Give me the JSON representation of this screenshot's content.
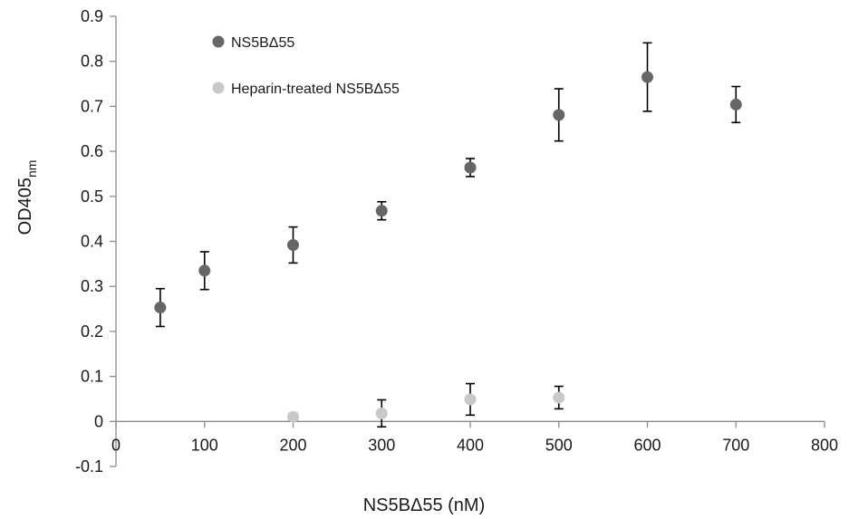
{
  "chart_data": {
    "type": "scatter",
    "xlabel": "NS5BΔ55 (nM)",
    "ylabel": {
      "main": "OD405",
      "sub": "nm"
    },
    "xlim": [
      0,
      800
    ],
    "ylim": [
      -0.1,
      0.9
    ],
    "x_ticks": [
      0,
      100,
      200,
      300,
      400,
      500,
      600,
      700,
      800
    ],
    "y_ticks": [
      -0.1,
      0,
      0.1,
      0.2,
      0.3,
      0.4,
      0.5,
      0.6,
      0.7,
      0.8,
      0.9
    ],
    "grid": false,
    "legend_position": "top-left",
    "series": [
      {
        "name": "NS5BΔ55",
        "color": "#666666",
        "points": [
          {
            "x": 50,
            "y": 0.253,
            "err": 0.042
          },
          {
            "x": 100,
            "y": 0.335,
            "err": 0.042
          },
          {
            "x": 200,
            "y": 0.392,
            "err": 0.04
          },
          {
            "x": 300,
            "y": 0.468,
            "err": 0.02
          },
          {
            "x": 400,
            "y": 0.564,
            "err": 0.02
          },
          {
            "x": 500,
            "y": 0.681,
            "err": 0.058
          },
          {
            "x": 600,
            "y": 0.765,
            "err": 0.076
          },
          {
            "x": 700,
            "y": 0.704,
            "err": 0.04
          }
        ]
      },
      {
        "name": "Heparin-treated NS5BΔ55",
        "color": "#c8c8c8",
        "points": [
          {
            "x": 200,
            "y": 0.01,
            "err": 0.008
          },
          {
            "x": 300,
            "y": 0.018,
            "err": 0.03
          },
          {
            "x": 400,
            "y": 0.049,
            "err": 0.035
          },
          {
            "x": 500,
            "y": 0.053,
            "err": 0.025
          }
        ]
      }
    ]
  }
}
